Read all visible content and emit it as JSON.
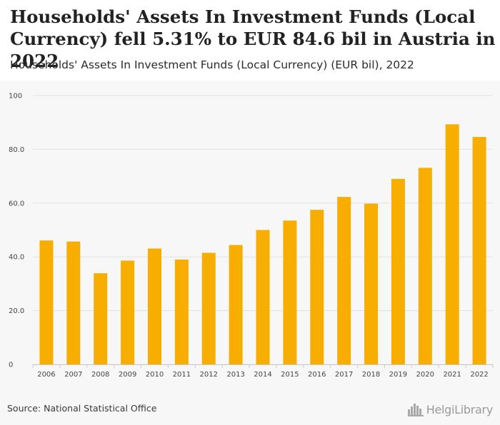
{
  "header": {
    "title": "Households' Assets In Investment Funds (Local Currency) fell 5.31% to EUR 84.6 bil in Austria in 2022",
    "subtitle": "Households' Assets In Investment Funds (Local Currency) (EUR bil), 2022"
  },
  "footer": {
    "source": "Source: National Statistical Office",
    "logo_text": "HelgiLibrary",
    "logo_icon": "skyline-icon"
  },
  "colors": {
    "bar": "#f7ae00",
    "grid": "#e2e2e2",
    "background": "#f7f7f7"
  },
  "chart_data": {
    "type": "bar",
    "title": "Households' Assets In Investment Funds (Local Currency) (EUR bil), 2022",
    "xlabel": "",
    "ylabel": "",
    "ylim": [
      0,
      100
    ],
    "yticks": [
      0,
      20,
      40,
      60,
      80,
      100
    ],
    "ytick_labels": [
      "0",
      "20.0",
      "40.0",
      "60.0",
      "80.0",
      "100"
    ],
    "grid": true,
    "categories": [
      "2006",
      "2007",
      "2008",
      "2009",
      "2010",
      "2011",
      "2012",
      "2013",
      "2014",
      "2015",
      "2016",
      "2017",
      "2018",
      "2019",
      "2020",
      "2021",
      "2022"
    ],
    "values": [
      46.1,
      45.7,
      33.9,
      38.6,
      43.1,
      39.0,
      41.5,
      44.4,
      50.0,
      53.5,
      57.5,
      62.3,
      59.8,
      69.0,
      73.1,
      89.3,
      84.6
    ]
  }
}
